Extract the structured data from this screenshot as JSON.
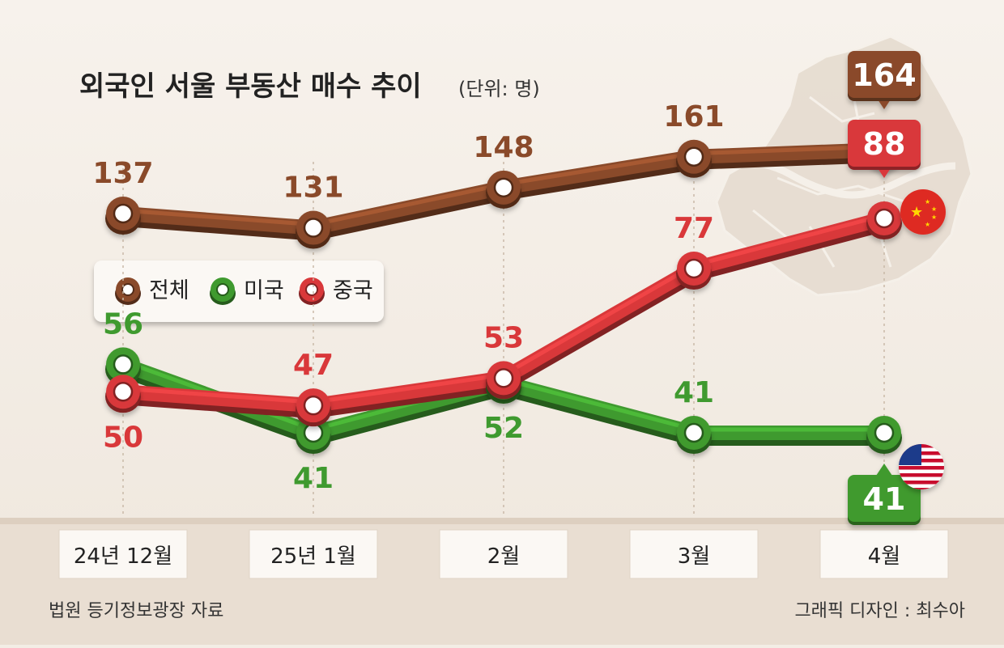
{
  "chart_data": {
    "type": "line",
    "title": "외국인 서울 부동산 매수 추이",
    "unit": "(단위: 명)",
    "categories": [
      "24년 12월",
      "25년 1월",
      "2월",
      "3월",
      "4월"
    ],
    "series": [
      {
        "name": "전체",
        "color": "#8a4a2a",
        "values": [
          137,
          131,
          148,
          161,
          164
        ]
      },
      {
        "name": "미국",
        "color": "#3f9a2f",
        "values": [
          56,
          41,
          52,
          41,
          41
        ]
      },
      {
        "name": "중국",
        "color": "#d9383a",
        "values": [
          50,
          47,
          53,
          77,
          88
        ]
      }
    ],
    "legend": [
      "전체",
      "미국",
      "중국"
    ],
    "source": "법원 등기정보광장 자료",
    "credit": "그래픽 디자인 : 최수아"
  }
}
